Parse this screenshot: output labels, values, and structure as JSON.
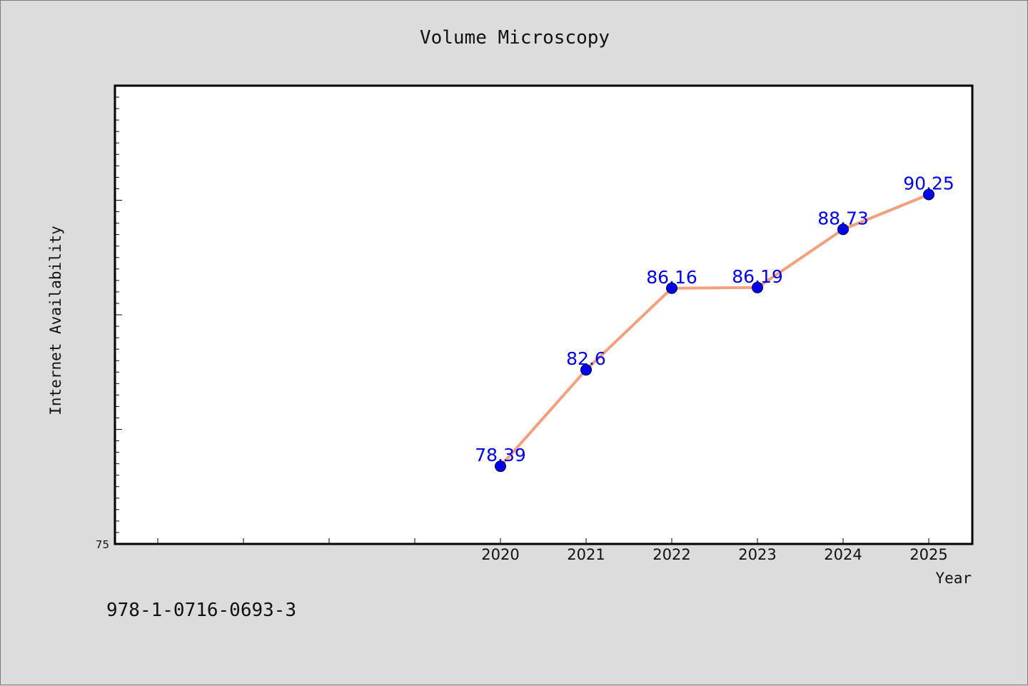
{
  "chart_data": {
    "type": "line",
    "title": "Volume Microscopy",
    "xlabel": "Year",
    "ylabel": "Internet Availability",
    "categories": [
      "2020",
      "2021",
      "2022",
      "2023",
      "2024",
      "2025"
    ],
    "series": [
      {
        "values": [
          78.39,
          82.6,
          86.16,
          86.19,
          88.73,
          90.25
        ]
      }
    ],
    "data_labels": [
      "78.39",
      "82.6",
      "86.16",
      "86.19",
      "88.73",
      "90.25"
    ],
    "y_tick_labels": [
      "75"
    ],
    "ylim": [
      75,
      95
    ],
    "grid": false,
    "line_color": "#f4a07e",
    "marker_color": "#0000ee",
    "label_color": "#0000ee"
  },
  "footer_text": "978-1-0716-0693-3"
}
